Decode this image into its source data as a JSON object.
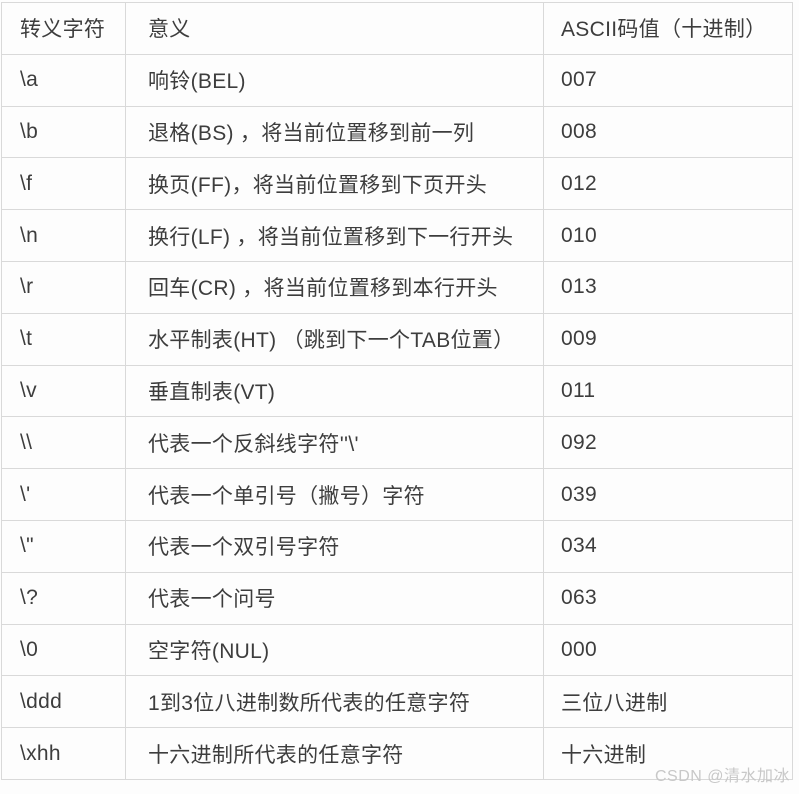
{
  "table": {
    "headers": [
      {
        "label": "转义字符"
      },
      {
        "label": "意义"
      },
      {
        "label": "ASCII码值（十进制）"
      }
    ],
    "rows": [
      {
        "escape": "\\a",
        "meaning": "响铃(BEL)",
        "ascii": "007"
      },
      {
        "escape": "\\b",
        "meaning": "退格(BS) ，将当前位置移到前一列",
        "ascii": "008"
      },
      {
        "escape": "\\f",
        "meaning": "换页(FF)，将当前位置移到下页开头",
        "ascii": "012"
      },
      {
        "escape": "\\n",
        "meaning": "换行(LF) ，将当前位置移到下一行开头",
        "ascii": "010"
      },
      {
        "escape": "\\r",
        "meaning": "回车(CR) ，将当前位置移到本行开头",
        "ascii": "013"
      },
      {
        "escape": "\\t",
        "meaning": "水平制表(HT) （跳到下一个TAB位置）",
        "ascii": "009"
      },
      {
        "escape": "\\v",
        "meaning": "垂直制表(VT)",
        "ascii": "011"
      },
      {
        "escape": "\\\\",
        "meaning": "代表一个反斜线字符''\\'",
        "ascii": "092"
      },
      {
        "escape": "\\'",
        "meaning": "代表一个单引号（撇号）字符",
        "ascii": "039"
      },
      {
        "escape": "\\\"",
        "meaning": "代表一个双引号字符",
        "ascii": "034"
      },
      {
        "escape": "\\?",
        "meaning": "代表一个问号",
        "ascii": "063"
      },
      {
        "escape": "\\0",
        "meaning": "空字符(NUL)",
        "ascii": "000"
      },
      {
        "escape": "\\ddd",
        "meaning": "1到3位八进制数所代表的任意字符",
        "ascii": "三位八进制"
      },
      {
        "escape": "\\xhh",
        "meaning": "十六进制所代表的任意字符",
        "ascii": "十六进制"
      }
    ]
  },
  "watermark": {
    "label": "CSDN @清水加冰"
  },
  "colors": {
    "background": "#fdfdfd",
    "grid_border": "#d9d9d9",
    "text": "#3d3d3d",
    "watermark_text": "#c8c8c8"
  }
}
